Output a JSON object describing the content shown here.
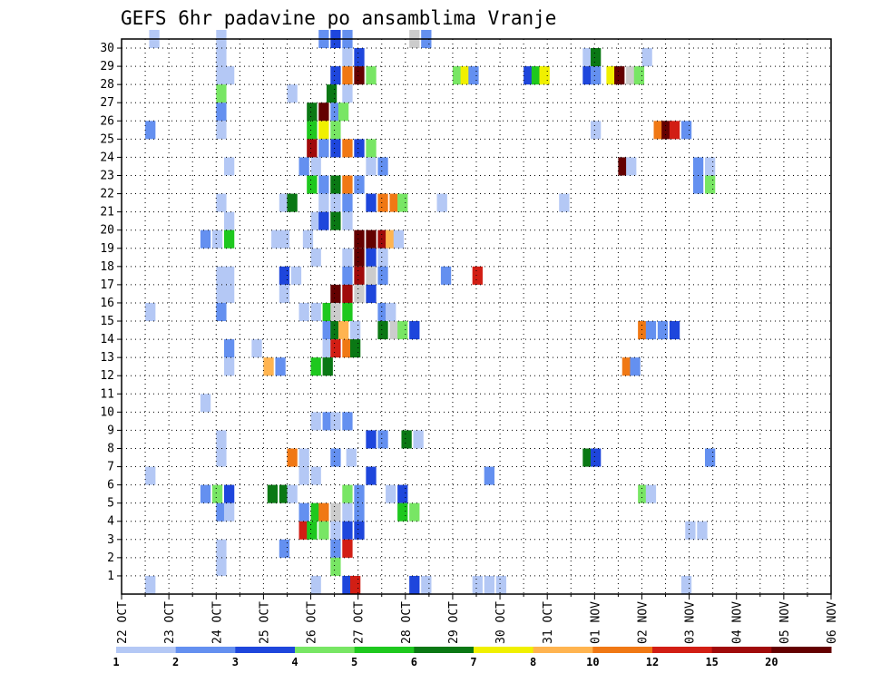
{
  "chart_data": {
    "type": "heatmap",
    "title": "GEFS 6hr padavine po ansamblima Vranje",
    "xlabel": "",
    "ylabel": "",
    "x_tick_labels": [
      "22 OCT",
      "23 OCT",
      "24 OCT",
      "25 OCT",
      "26 OCT",
      "27 OCT",
      "28 OCT",
      "29 OCT",
      "30 OCT",
      "31 OCT",
      "01 NOV",
      "02 NOV",
      "03 NOV",
      "04 NOV",
      "05 NOV",
      "06 NOV"
    ],
    "x_range_hours": [
      0,
      360
    ],
    "y_tick_labels": [
      "1",
      "2",
      "3",
      "4",
      "5",
      "6",
      "7",
      "8",
      "9",
      "10",
      "11",
      "12",
      "13",
      "14",
      "15",
      "16",
      "17",
      "18",
      "19",
      "20",
      "21",
      "22",
      "23",
      "24",
      "25",
      "26",
      "27",
      "28",
      "29",
      "30"
    ],
    "y_range": [
      0,
      30
    ],
    "grid": true,
    "colorbar": {
      "labels": [
        "1",
        "2",
        "3",
        "4",
        "5",
        "6",
        "7",
        "8",
        "10",
        "12",
        "15",
        "20"
      ],
      "colors": [
        "#b4c8f5",
        "#6490f0",
        "#1e46dc",
        "#78e664",
        "#1ec81e",
        "#0a7814",
        "#f0f000",
        "#ffb450",
        "#f07814",
        "#d21e14",
        "#a00a0a",
        "#640000"
      ]
    },
    "cells": [
      {
        "m": 30,
        "c": [
          [
            7,
            1
          ],
          [
            24,
            1
          ],
          [
            50,
            2
          ],
          [
            53,
            3
          ],
          [
            56,
            2
          ],
          [
            73,
            14
          ],
          [
            76,
            2
          ]
        ]
      },
      {
        "m": 29,
        "c": [
          [
            24,
            1
          ],
          [
            56,
            1
          ],
          [
            59,
            3
          ],
          [
            117,
            1
          ],
          [
            119,
            6
          ],
          [
            132,
            1
          ]
        ]
      },
      {
        "m": 28,
        "c": [
          [
            24,
            1
          ],
          [
            26,
            1
          ],
          [
            53,
            3
          ],
          [
            56,
            9
          ],
          [
            59,
            12
          ],
          [
            62,
            4
          ],
          [
            84,
            4
          ],
          [
            86,
            7
          ],
          [
            88,
            2
          ],
          [
            102,
            3
          ],
          [
            104,
            5
          ],
          [
            106,
            7
          ],
          [
            117,
            3
          ],
          [
            119,
            2
          ],
          [
            123,
            7
          ],
          [
            125,
            12
          ],
          [
            128,
            14
          ],
          [
            130,
            4
          ]
        ]
      },
      {
        "m": 27,
        "c": [
          [
            24,
            4
          ],
          [
            42,
            1
          ],
          [
            52,
            6
          ],
          [
            56,
            1
          ]
        ]
      },
      {
        "m": 26,
        "c": [
          [
            24,
            2
          ],
          [
            47,
            6
          ],
          [
            50,
            12
          ],
          [
            53,
            2
          ],
          [
            55,
            4
          ]
        ]
      },
      {
        "m": 25,
        "c": [
          [
            6,
            2
          ],
          [
            24,
            1
          ],
          [
            47,
            5
          ],
          [
            50,
            7
          ],
          [
            53,
            4
          ],
          [
            119,
            1
          ],
          [
            135,
            9
          ],
          [
            137,
            12
          ],
          [
            139,
            10
          ],
          [
            142,
            2
          ]
        ]
      },
      {
        "m": 24,
        "c": [
          [
            47,
            11
          ],
          [
            50,
            2
          ],
          [
            53,
            3
          ],
          [
            56,
            9
          ],
          [
            59,
            3
          ],
          [
            62,
            4
          ]
        ]
      },
      {
        "m": 23,
        "c": [
          [
            26,
            1
          ],
          [
            45,
            2
          ],
          [
            48,
            1
          ],
          [
            62,
            1
          ],
          [
            65,
            2
          ],
          [
            126,
            12
          ],
          [
            128,
            1
          ],
          [
            145,
            2
          ],
          [
            148,
            1
          ]
        ]
      },
      {
        "m": 22,
        "c": [
          [
            47,
            5
          ],
          [
            50,
            2
          ],
          [
            53,
            6
          ],
          [
            56,
            9
          ],
          [
            59,
            2
          ],
          [
            145,
            2
          ],
          [
            148,
            4
          ]
        ]
      },
      {
        "m": 21,
        "c": [
          [
            24,
            1
          ],
          [
            40,
            1
          ],
          [
            42,
            6
          ],
          [
            50,
            1
          ],
          [
            53,
            1
          ],
          [
            56,
            2
          ],
          [
            62,
            3
          ],
          [
            65,
            9
          ],
          [
            68,
            9
          ],
          [
            70,
            4
          ],
          [
            80,
            1
          ],
          [
            111,
            1
          ]
        ]
      },
      {
        "m": 20,
        "c": [
          [
            26,
            1
          ],
          [
            48,
            1
          ],
          [
            50,
            3
          ],
          [
            53,
            6
          ],
          [
            56,
            1
          ]
        ]
      },
      {
        "m": 19,
        "c": [
          [
            20,
            2
          ],
          [
            23,
            1
          ],
          [
            26,
            5
          ],
          [
            38,
            1
          ],
          [
            40,
            1
          ],
          [
            46,
            1
          ],
          [
            59,
            12
          ],
          [
            62,
            12
          ],
          [
            65,
            11
          ],
          [
            67,
            8
          ],
          [
            69,
            1
          ]
        ]
      },
      {
        "m": 18,
        "c": [
          [
            48,
            1
          ],
          [
            56,
            1
          ],
          [
            59,
            12
          ],
          [
            62,
            3
          ],
          [
            65,
            1
          ]
        ]
      },
      {
        "m": 17,
        "c": [
          [
            24,
            1
          ],
          [
            26,
            1
          ],
          [
            40,
            3
          ],
          [
            43,
            1
          ],
          [
            56,
            2
          ],
          [
            59,
            11
          ],
          [
            62,
            14
          ],
          [
            65,
            2
          ],
          [
            81,
            2
          ],
          [
            89,
            10
          ]
        ]
      },
      {
        "m": 16,
        "c": [
          [
            24,
            1
          ],
          [
            26,
            1
          ],
          [
            40,
            1
          ],
          [
            53,
            12
          ],
          [
            56,
            11
          ],
          [
            59,
            14
          ],
          [
            62,
            3
          ]
        ]
      },
      {
        "m": 15,
        "c": [
          [
            6,
            1
          ],
          [
            24,
            2
          ],
          [
            45,
            1
          ],
          [
            48,
            1
          ],
          [
            51,
            5
          ],
          [
            53,
            13
          ],
          [
            56,
            5
          ],
          [
            65,
            2
          ],
          [
            67,
            1
          ]
        ]
      },
      {
        "m": 14,
        "c": [
          [
            51,
            2
          ],
          [
            53,
            6
          ],
          [
            55,
            8
          ],
          [
            58,
            1
          ],
          [
            65,
            6
          ],
          [
            68,
            14
          ],
          [
            70,
            4
          ],
          [
            73,
            3
          ],
          [
            131,
            9
          ],
          [
            133,
            2
          ],
          [
            136,
            2
          ],
          [
            139,
            3
          ]
        ]
      },
      {
        "m": 13,
        "c": [
          [
            26,
            2
          ],
          [
            33,
            1
          ],
          [
            51,
            1
          ],
          [
            53,
            10
          ],
          [
            56,
            9
          ],
          [
            58,
            6
          ]
        ]
      },
      {
        "m": 12,
        "c": [
          [
            26,
            1
          ],
          [
            36,
            8
          ],
          [
            39,
            2
          ],
          [
            48,
            5
          ],
          [
            51,
            6
          ],
          [
            127,
            9
          ],
          [
            129,
            2
          ]
        ]
      },
      {
        "m": 10,
        "c": [
          [
            20,
            1
          ]
        ]
      },
      {
        "m": 9,
        "c": [
          [
            48,
            1
          ],
          [
            51,
            2
          ],
          [
            53,
            1
          ],
          [
            56,
            2
          ]
        ]
      },
      {
        "m": 8,
        "c": [
          [
            24,
            1
          ],
          [
            62,
            3
          ],
          [
            65,
            2
          ],
          [
            71,
            6
          ],
          [
            74,
            1
          ]
        ]
      },
      {
        "m": 7,
        "c": [
          [
            24,
            1
          ],
          [
            42,
            9
          ],
          [
            45,
            1
          ],
          [
            53,
            2
          ],
          [
            57,
            1
          ],
          [
            117,
            6
          ],
          [
            119,
            3
          ],
          [
            148,
            2
          ]
        ]
      },
      {
        "m": 6,
        "c": [
          [
            6,
            1
          ],
          [
            45,
            1
          ],
          [
            48,
            1
          ],
          [
            62,
            3
          ],
          [
            92,
            2
          ]
        ]
      },
      {
        "m": 5,
        "c": [
          [
            20,
            2
          ],
          [
            23,
            4
          ],
          [
            26,
            3
          ],
          [
            37,
            6
          ],
          [
            40,
            6
          ],
          [
            42,
            1
          ],
          [
            56,
            4
          ],
          [
            59,
            2
          ],
          [
            67,
            1
          ],
          [
            70,
            3
          ],
          [
            131,
            4
          ],
          [
            133,
            1
          ]
        ]
      },
      {
        "m": 4,
        "c": [
          [
            24,
            2
          ],
          [
            26,
            1
          ],
          [
            45,
            2
          ],
          [
            48,
            5
          ],
          [
            50,
            9
          ],
          [
            53,
            14
          ],
          [
            56,
            1
          ],
          [
            59,
            2
          ],
          [
            70,
            5
          ],
          [
            73,
            4
          ]
        ]
      },
      {
        "m": 3,
        "c": [
          [
            45,
            10
          ],
          [
            47,
            5
          ],
          [
            50,
            4
          ],
          [
            53,
            1
          ],
          [
            56,
            3
          ],
          [
            59,
            3
          ],
          [
            143,
            1
          ],
          [
            146,
            1
          ]
        ]
      },
      {
        "m": 2,
        "c": [
          [
            24,
            1
          ],
          [
            40,
            2
          ],
          [
            53,
            2
          ],
          [
            56,
            10
          ]
        ]
      },
      {
        "m": 1,
        "c": [
          [
            24,
            1
          ],
          [
            53,
            4
          ]
        ]
      },
      {
        "m": 0,
        "c": [
          [
            6,
            1
          ],
          [
            48,
            1
          ],
          [
            56,
            3
          ],
          [
            58,
            10
          ],
          [
            73,
            3
          ],
          [
            76,
            1
          ],
          [
            89,
            1
          ],
          [
            92,
            1
          ],
          [
            95,
            1
          ],
          [
            142,
            1
          ]
        ]
      }
    ]
  }
}
